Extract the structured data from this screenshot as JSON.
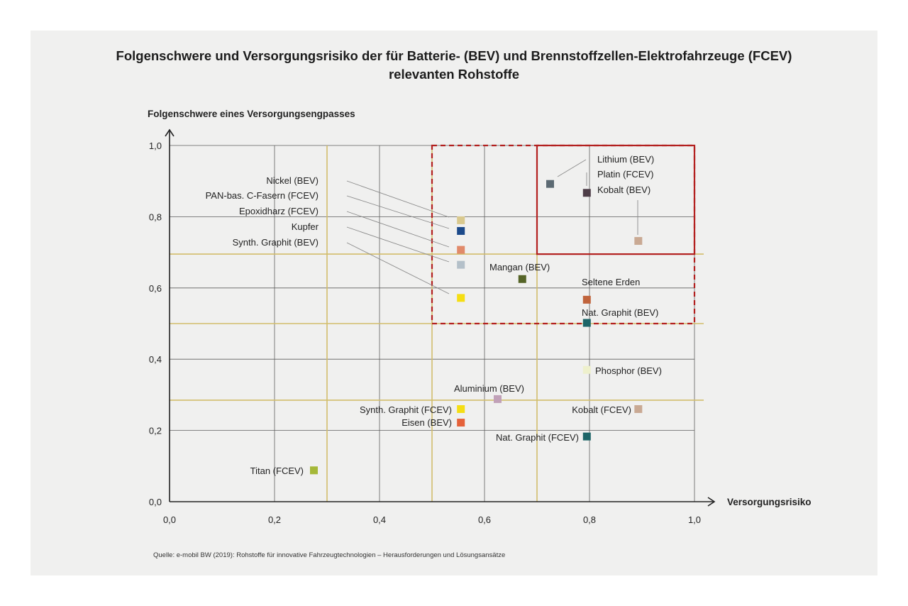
{
  "title_line1": "Folgenschwere und Versorgungsrisiko der für Batterie- (BEV) und Brennstoffzellen-Elektrofahrzeuge (FCEV)",
  "title_line2": "relevanten Rohstoffe",
  "source": "Quelle: e-mobil BW (2019): Rohstoffe für innovative Fahrzeugtechnologien – Herausforderungen und Lösungsansätze",
  "chart_data": {
    "type": "scatter",
    "title": "Folgenschwere und Versorgungsrisiko der für Batterie- (BEV) und Brennstoffzellen-Elektrofahrzeuge (FCEV) relevanten Rohstoffe",
    "xlabel": "Versorgungsrisiko",
    "ylabel": "Folgenschwere eines Versorgungsengpasses",
    "xlim": [
      0,
      1
    ],
    "ylim": [
      0,
      1
    ],
    "xticks": [
      "0,0",
      "0,2",
      "0,4",
      "0,6",
      "0,8",
      "1,0"
    ],
    "yticks": [
      "0,0",
      "0,2",
      "0,4",
      "0,6",
      "0,8",
      "1,0"
    ],
    "grid": true,
    "threshold_lines": {
      "x": [
        0.3,
        0.5,
        0.7
      ],
      "y": [
        0.285,
        0.5,
        0.695
      ]
    },
    "highlight_regions": [
      {
        "style": "dashed",
        "x": [
          0.5,
          1.0
        ],
        "y": [
          0.5,
          1.0
        ],
        "color": "#b3201f"
      },
      {
        "style": "solid",
        "x": [
          0.7,
          1.0
        ],
        "y": [
          0.695,
          1.0
        ],
        "color": "#b3201f"
      }
    ],
    "points": [
      {
        "name": "Nickel (BEV)",
        "x": 0.555,
        "y": 0.79,
        "color": "#d9c98e"
      },
      {
        "name": "PAN-bas. C-Fasern (FCEV)",
        "x": 0.555,
        "y": 0.76,
        "color": "#1c4a8a"
      },
      {
        "name": "Epoxidharz (FCEV)",
        "x": 0.555,
        "y": 0.707,
        "color": "#e18a6a"
      },
      {
        "name": "Kupfer",
        "x": 0.555,
        "y": 0.665,
        "color": "#b4c0c9"
      },
      {
        "name": "Synth. Graphit (BEV)",
        "x": 0.555,
        "y": 0.572,
        "color": "#f5de13"
      },
      {
        "name": "Lithium (BEV)",
        "x": 0.725,
        "y": 0.892,
        "color": "#5c6a73"
      },
      {
        "name": "Platin (FCEV)",
        "x": 0.795,
        "y": 0.867,
        "color": "#4e3e48"
      },
      {
        "name": "Kobalt (BEV)",
        "x": 0.893,
        "y": 0.732,
        "color": "#c9a993"
      },
      {
        "name": "Mangan (BEV)",
        "x": 0.672,
        "y": 0.625,
        "color": "#556427"
      },
      {
        "name": "Seltene Erden",
        "x": 0.795,
        "y": 0.567,
        "color": "#c0643c"
      },
      {
        "name": "Nat. Graphit (BEV)",
        "x": 0.795,
        "y": 0.502,
        "color": "#1d6568"
      },
      {
        "name": "Phosphor (BEV)",
        "x": 0.795,
        "y": 0.37,
        "color": "#eef0cc"
      },
      {
        "name": "Aluminium (BEV)",
        "x": 0.625,
        "y": 0.288,
        "color": "#c1a1b8"
      },
      {
        "name": "Synth. Graphit (FCEV)",
        "x": 0.555,
        "y": 0.26,
        "color": "#f5de13"
      },
      {
        "name": "Kobalt (FCEV)",
        "x": 0.893,
        "y": 0.26,
        "color": "#c9a993"
      },
      {
        "name": "Eisen (BEV)",
        "x": 0.555,
        "y": 0.222,
        "color": "#e5623a"
      },
      {
        "name": "Nat. Graphit (FCEV)",
        "x": 0.795,
        "y": 0.183,
        "color": "#1d6568"
      },
      {
        "name": "Titan (FCEV)",
        "x": 0.275,
        "y": 0.088,
        "color": "#a5b838"
      }
    ]
  }
}
